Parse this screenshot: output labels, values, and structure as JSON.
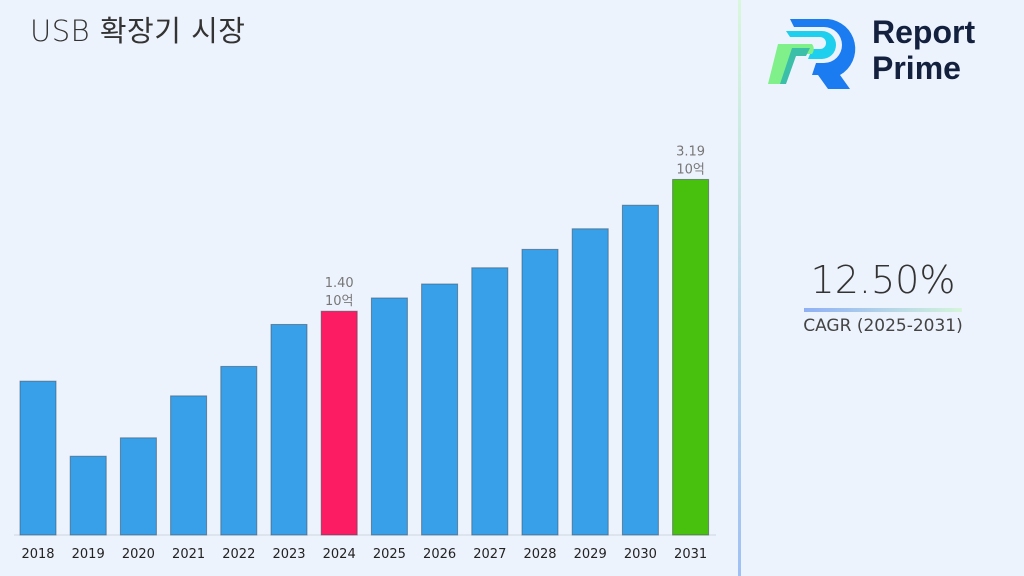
{
  "brand": {
    "name_line1": "Report",
    "name_line2": "Prime"
  },
  "cagr": {
    "value": "12.50%",
    "label": "CAGR (2025-2031)"
  },
  "colors": {
    "default_bar": "#38a0e8",
    "highlight_bar": "#fc1c64",
    "final_bar": "#48c00e",
    "divider_top": "#d8f7dc",
    "divider_bottom": "#9fc0f5"
  },
  "chart_data": {
    "type": "bar",
    "title": "USB 확장기 시장",
    "xlabel": "",
    "ylabel": "",
    "categories": [
      "2018",
      "2019",
      "2020",
      "2021",
      "2022",
      "2023",
      "2024",
      "2025",
      "2026",
      "2027",
      "2028",
      "2029",
      "2030",
      "2031"
    ],
    "values": [
      0.45,
      -0.57,
      -0.32,
      0.25,
      0.65,
      1.22,
      1.4,
      1.58,
      1.77,
      1.99,
      2.24,
      2.52,
      2.84,
      3.19
    ],
    "ylim": [
      -1.64,
      3.4
    ],
    "grid": false,
    "highlight": {
      "2024": "#fc1c64",
      "2031": "#48c00e"
    },
    "data_labels": [
      {
        "category": "2024",
        "value": "1.40",
        "unit": "10억"
      },
      {
        "category": "2031",
        "value": "3.19",
        "unit": "10억"
      }
    ]
  }
}
